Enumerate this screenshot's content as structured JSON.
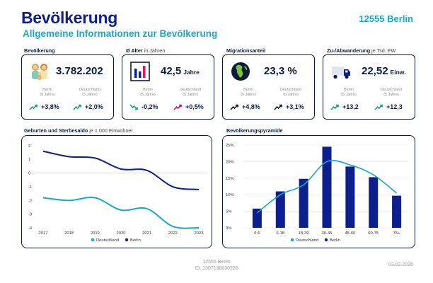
{
  "header": {
    "title": "Bevölkerung",
    "subtitle": "Allgemeine Informationen zur Bevölkerung",
    "location": "12555 Berlin"
  },
  "kpis": [
    {
      "label": "Bevölkerung",
      "label_suffix": "",
      "icon": "family-icon",
      "value": "3.782.202",
      "unit": "",
      "cmp_left": {
        "line1": "Berlin",
        "line2": "(5 Jahre)",
        "trend": "+3,8%",
        "direction": "up",
        "color": "#1e9e7a"
      },
      "cmp_right": {
        "line1": "Deutschland",
        "line2": "(5 Jahre)",
        "trend": "+2,0%",
        "direction": "up",
        "color": "#1e9e7a"
      }
    },
    {
      "label": "Ø Alter",
      "label_suffix": "in Jahren",
      "icon": "bar-chart-icon",
      "value": "42,5",
      "unit": "Jahre",
      "cmp_left": {
        "line1": "Berlin",
        "line2": "(5 Jahre)",
        "trend": "-0,2%",
        "direction": "down",
        "color": "#1e9e7a"
      },
      "cmp_right": {
        "line1": "Deutschland",
        "line2": "(5 Jahre)",
        "trend": "+0,5%",
        "direction": "up",
        "color": "#c2185b"
      }
    },
    {
      "label": "Migrationsanteil",
      "label_suffix": "",
      "icon": "globe-icon",
      "value": "23,3 %",
      "unit": "",
      "cmp_left": {
        "line1": "Berlin",
        "line2": "(5 Jahre)",
        "trend": "+4,8%",
        "direction": "up",
        "color": "#0b1d3a"
      },
      "cmp_right": {
        "line1": "Deutschland",
        "line2": "(5 Jahre)",
        "trend": "+3,1%",
        "direction": "up",
        "color": "#0b1d3a"
      }
    },
    {
      "label": "Zu-/Abwanderung",
      "label_suffix": "je Tsd. EW.",
      "icon": "truck-icon",
      "value": "22,52",
      "unit": "Einw.",
      "cmp_left": {
        "line1": "Berlin",
        "line2": "(5 Jahre)",
        "trend": "+13,2",
        "direction": "up",
        "color": "#1e9e7a"
      },
      "cmp_right": {
        "line1": "Deutschland",
        "line2": "(5 Jahre)",
        "trend": "+12,3",
        "direction": "up",
        "color": "#1e9e7a"
      }
    }
  ],
  "panels": {
    "births": {
      "label": "Geburten und Sterbesaldo",
      "label_suffix": "je 1.000 Einwohner"
    },
    "pyramid": {
      "label": "Bevölkerungspyramide",
      "label_suffix": ""
    }
  },
  "chart_data": [
    {
      "type": "line",
      "title": "Geburten und Sterbesaldo je 1.000 Einwohner",
      "x": [
        "2017",
        "2018",
        "2019",
        "2020",
        "2021",
        "2022",
        "2023"
      ],
      "ylim": [
        -4,
        2
      ],
      "yticks": [
        2,
        1,
        0,
        -1,
        -2,
        -3,
        -4
      ],
      "series": [
        {
          "name": "Deutschland",
          "color": "#1aa7c7",
          "values": [
            -1.8,
            -2.0,
            -1.8,
            -2.7,
            -2.6,
            -3.9,
            -4.0
          ]
        },
        {
          "name": "Berlin",
          "color": "#0d1f8c",
          "values": [
            1.6,
            1.2,
            1.1,
            0.3,
            0.2,
            -1.0,
            -1.2
          ]
        }
      ],
      "legend": "bottom"
    },
    {
      "type": "bar",
      "title": "Bevölkerungspyramide",
      "categories": [
        "0-6",
        "6-18",
        "18-30",
        "30-45",
        "45-60",
        "60-75",
        "75+"
      ],
      "ylim": [
        0,
        25
      ],
      "yticks": [
        "0%",
        "5%",
        "10%",
        "15%",
        "20%",
        "25%"
      ],
      "series": [
        {
          "name": "Deutschland",
          "color": "#1aa7c7",
          "kind": "line",
          "values": [
            4.5,
            10.0,
            13.0,
            20.0,
            19.0,
            16.0,
            10.5
          ]
        },
        {
          "name": "Berlin",
          "color": "#0d1f8c",
          "kind": "bar",
          "values": [
            5.8,
            11.0,
            14.8,
            24.5,
            18.5,
            15.3,
            9.7
          ]
        }
      ],
      "legend": "bottom"
    }
  ],
  "footer": {
    "line1": "12555 Berlin",
    "line2": "ID: 1307136030226",
    "date": "03.02.2026"
  }
}
